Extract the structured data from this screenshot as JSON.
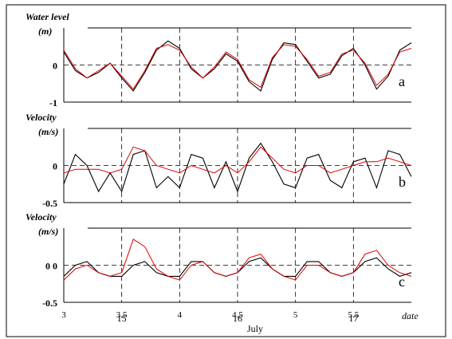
{
  "colors": {
    "observed": "#e00000",
    "modelled": "#000000",
    "grid": "#000000"
  },
  "x_axis": {
    "ticks": [
      3,
      3.5,
      4,
      4.5,
      5,
      5.5
    ],
    "tick_labels": [
      "3",
      "3.5",
      "4",
      "4.5",
      "5",
      "5.5"
    ],
    "date_ticks": [
      3.5,
      4.5,
      5.5
    ],
    "date_labels": [
      "15",
      "16",
      "17"
    ],
    "label": "July",
    "end_label": "date"
  },
  "chart_data": [
    {
      "type": "line",
      "panel": "a",
      "ylabel_line1": "Water level",
      "ylabel_line2": "(m)",
      "ytick_labels": [
        "0",
        "-1"
      ],
      "yticks": [
        0,
        -1
      ],
      "ylim": [
        -1,
        1
      ],
      "xlim": [
        3,
        6.0
      ],
      "series": [
        {
          "role": "modelled",
          "color": "#000000",
          "x": [
            3,
            3.1,
            3.2,
            3.3,
            3.4,
            3.5,
            3.6,
            3.7,
            3.8,
            3.9,
            4,
            4.1,
            4.2,
            4.3,
            4.4,
            4.5,
            4.6,
            4.7,
            4.8,
            4.9,
            5,
            5.1,
            5.2,
            5.3,
            5.4,
            5.5,
            5.6,
            5.7,
            5.8,
            5.9,
            6.0
          ],
          "y": [
            0.35,
            -0.15,
            -0.35,
            -0.2,
            0.05,
            -0.35,
            -0.7,
            -0.2,
            0.4,
            0.65,
            0.45,
            -0.1,
            -0.35,
            -0.1,
            0.3,
            0.1,
            -0.45,
            -0.7,
            0.15,
            0.6,
            0.55,
            0.1,
            -0.35,
            -0.25,
            0.25,
            0.45,
            0.0,
            -0.65,
            -0.3,
            0.4,
            0.6
          ]
        },
        {
          "role": "observed",
          "color": "#e00000",
          "x": [
            3,
            3.1,
            3.2,
            3.3,
            3.4,
            3.5,
            3.6,
            3.7,
            3.8,
            3.9,
            4,
            4.1,
            4.2,
            4.3,
            4.4,
            4.5,
            4.6,
            4.7,
            4.8,
            4.9,
            5,
            5.1,
            5.2,
            5.3,
            5.4,
            5.5,
            5.6,
            5.7,
            5.8,
            5.9,
            6.0
          ],
          "y": [
            0.4,
            -0.1,
            -0.35,
            -0.15,
            0.05,
            -0.3,
            -0.65,
            -0.15,
            0.45,
            0.55,
            0.4,
            -0.05,
            -0.35,
            -0.05,
            0.35,
            0.15,
            -0.4,
            -0.6,
            0.2,
            0.55,
            0.5,
            0.15,
            -0.3,
            -0.2,
            0.3,
            0.4,
            0.05,
            -0.55,
            -0.25,
            0.35,
            0.45
          ]
        }
      ],
      "tag": "a"
    },
    {
      "type": "line",
      "panel": "b",
      "ylabel_line1": "Velocity",
      "ylabel_line2": "(m/s)",
      "ytick_labels": [
        "0",
        "-0.5"
      ],
      "yticks": [
        0,
        -0.5
      ],
      "ylim": [
        -0.5,
        0.5
      ],
      "xlim": [
        3,
        6.0
      ],
      "series": [
        {
          "role": "modelled",
          "color": "#000000",
          "x": [
            3,
            3.1,
            3.2,
            3.3,
            3.4,
            3.5,
            3.6,
            3.7,
            3.8,
            3.9,
            4,
            4.1,
            4.2,
            4.3,
            4.4,
            4.5,
            4.6,
            4.7,
            4.8,
            4.9,
            5,
            5.1,
            5.2,
            5.3,
            5.4,
            5.5,
            5.6,
            5.7,
            5.8,
            5.9,
            6.0
          ],
          "y": [
            -0.25,
            0.15,
            0.0,
            -0.35,
            -0.1,
            -0.35,
            0.15,
            0.2,
            -0.3,
            -0.15,
            -0.3,
            0.15,
            0.1,
            -0.3,
            0.05,
            -0.35,
            0.1,
            0.3,
            0.05,
            -0.25,
            -0.3,
            0.1,
            0.15,
            -0.2,
            -0.3,
            0.05,
            0.1,
            -0.3,
            0.2,
            0.15,
            -0.15
          ]
        },
        {
          "role": "observed",
          "color": "#e00000",
          "x": [
            3,
            3.1,
            3.2,
            3.3,
            3.4,
            3.5,
            3.6,
            3.7,
            3.8,
            3.9,
            4,
            4.1,
            4.2,
            4.3,
            4.4,
            4.5,
            4.6,
            4.7,
            4.8,
            4.9,
            5,
            5.1,
            5.2,
            5.3,
            5.4,
            5.5,
            5.6,
            5.7,
            5.8,
            5.9,
            6.0
          ],
          "y": [
            -0.1,
            -0.05,
            -0.05,
            -0.05,
            -0.1,
            -0.05,
            0.25,
            0.2,
            0.0,
            -0.05,
            -0.1,
            0.0,
            -0.05,
            -0.1,
            0.0,
            -0.1,
            0.05,
            0.25,
            0.1,
            -0.05,
            -0.1,
            0.0,
            0.0,
            -0.1,
            -0.05,
            0.0,
            0.05,
            0.05,
            0.1,
            0.05,
            0.0
          ]
        }
      ],
      "tag": "b"
    },
    {
      "type": "line",
      "panel": "c",
      "ylabel_line1": "Velocity",
      "ylabel_line2": "(m/s)",
      "ytick_labels": [
        "0 0",
        "-0.5"
      ],
      "yticks": [
        0,
        -0.5
      ],
      "ylim": [
        -0.5,
        0.5
      ],
      "xlim": [
        3,
        6.0
      ],
      "series": [
        {
          "role": "modelled",
          "color": "#000000",
          "x": [
            3,
            3.1,
            3.2,
            3.3,
            3.4,
            3.5,
            3.6,
            3.7,
            3.8,
            3.9,
            4,
            4.1,
            4.2,
            4.3,
            4.4,
            4.5,
            4.6,
            4.7,
            4.8,
            4.9,
            5,
            5.1,
            5.2,
            5.3,
            5.4,
            5.5,
            5.6,
            5.7,
            5.8,
            5.9,
            6.0
          ],
          "y": [
            -0.15,
            0.0,
            0.05,
            -0.1,
            -0.15,
            -0.15,
            0.0,
            0.05,
            -0.1,
            -0.15,
            -0.15,
            0.05,
            0.05,
            -0.1,
            -0.15,
            -0.1,
            0.05,
            0.1,
            -0.05,
            -0.15,
            -0.15,
            0.05,
            0.05,
            -0.1,
            -0.15,
            -0.1,
            0.05,
            0.1,
            -0.05,
            -0.15,
            -0.1
          ]
        },
        {
          "role": "observed",
          "color": "#e00000",
          "x": [
            3,
            3.1,
            3.2,
            3.3,
            3.4,
            3.5,
            3.6,
            3.7,
            3.8,
            3.9,
            4,
            4.1,
            4.2,
            4.3,
            4.4,
            4.5,
            4.6,
            4.7,
            4.8,
            4.9,
            5,
            5.1,
            5.2,
            5.3,
            5.4,
            5.5,
            5.6,
            5.7,
            5.8,
            5.9,
            6.0
          ],
          "y": [
            -0.2,
            -0.05,
            0.0,
            -0.1,
            -0.15,
            -0.1,
            0.35,
            0.25,
            -0.05,
            -0.15,
            -0.2,
            0.0,
            0.05,
            -0.1,
            -0.15,
            -0.1,
            0.1,
            0.15,
            -0.05,
            -0.15,
            -0.2,
            0.0,
            0.0,
            -0.1,
            -0.15,
            -0.1,
            0.15,
            0.2,
            0.0,
            -0.1,
            -0.15
          ]
        }
      ],
      "tag": "c"
    }
  ]
}
